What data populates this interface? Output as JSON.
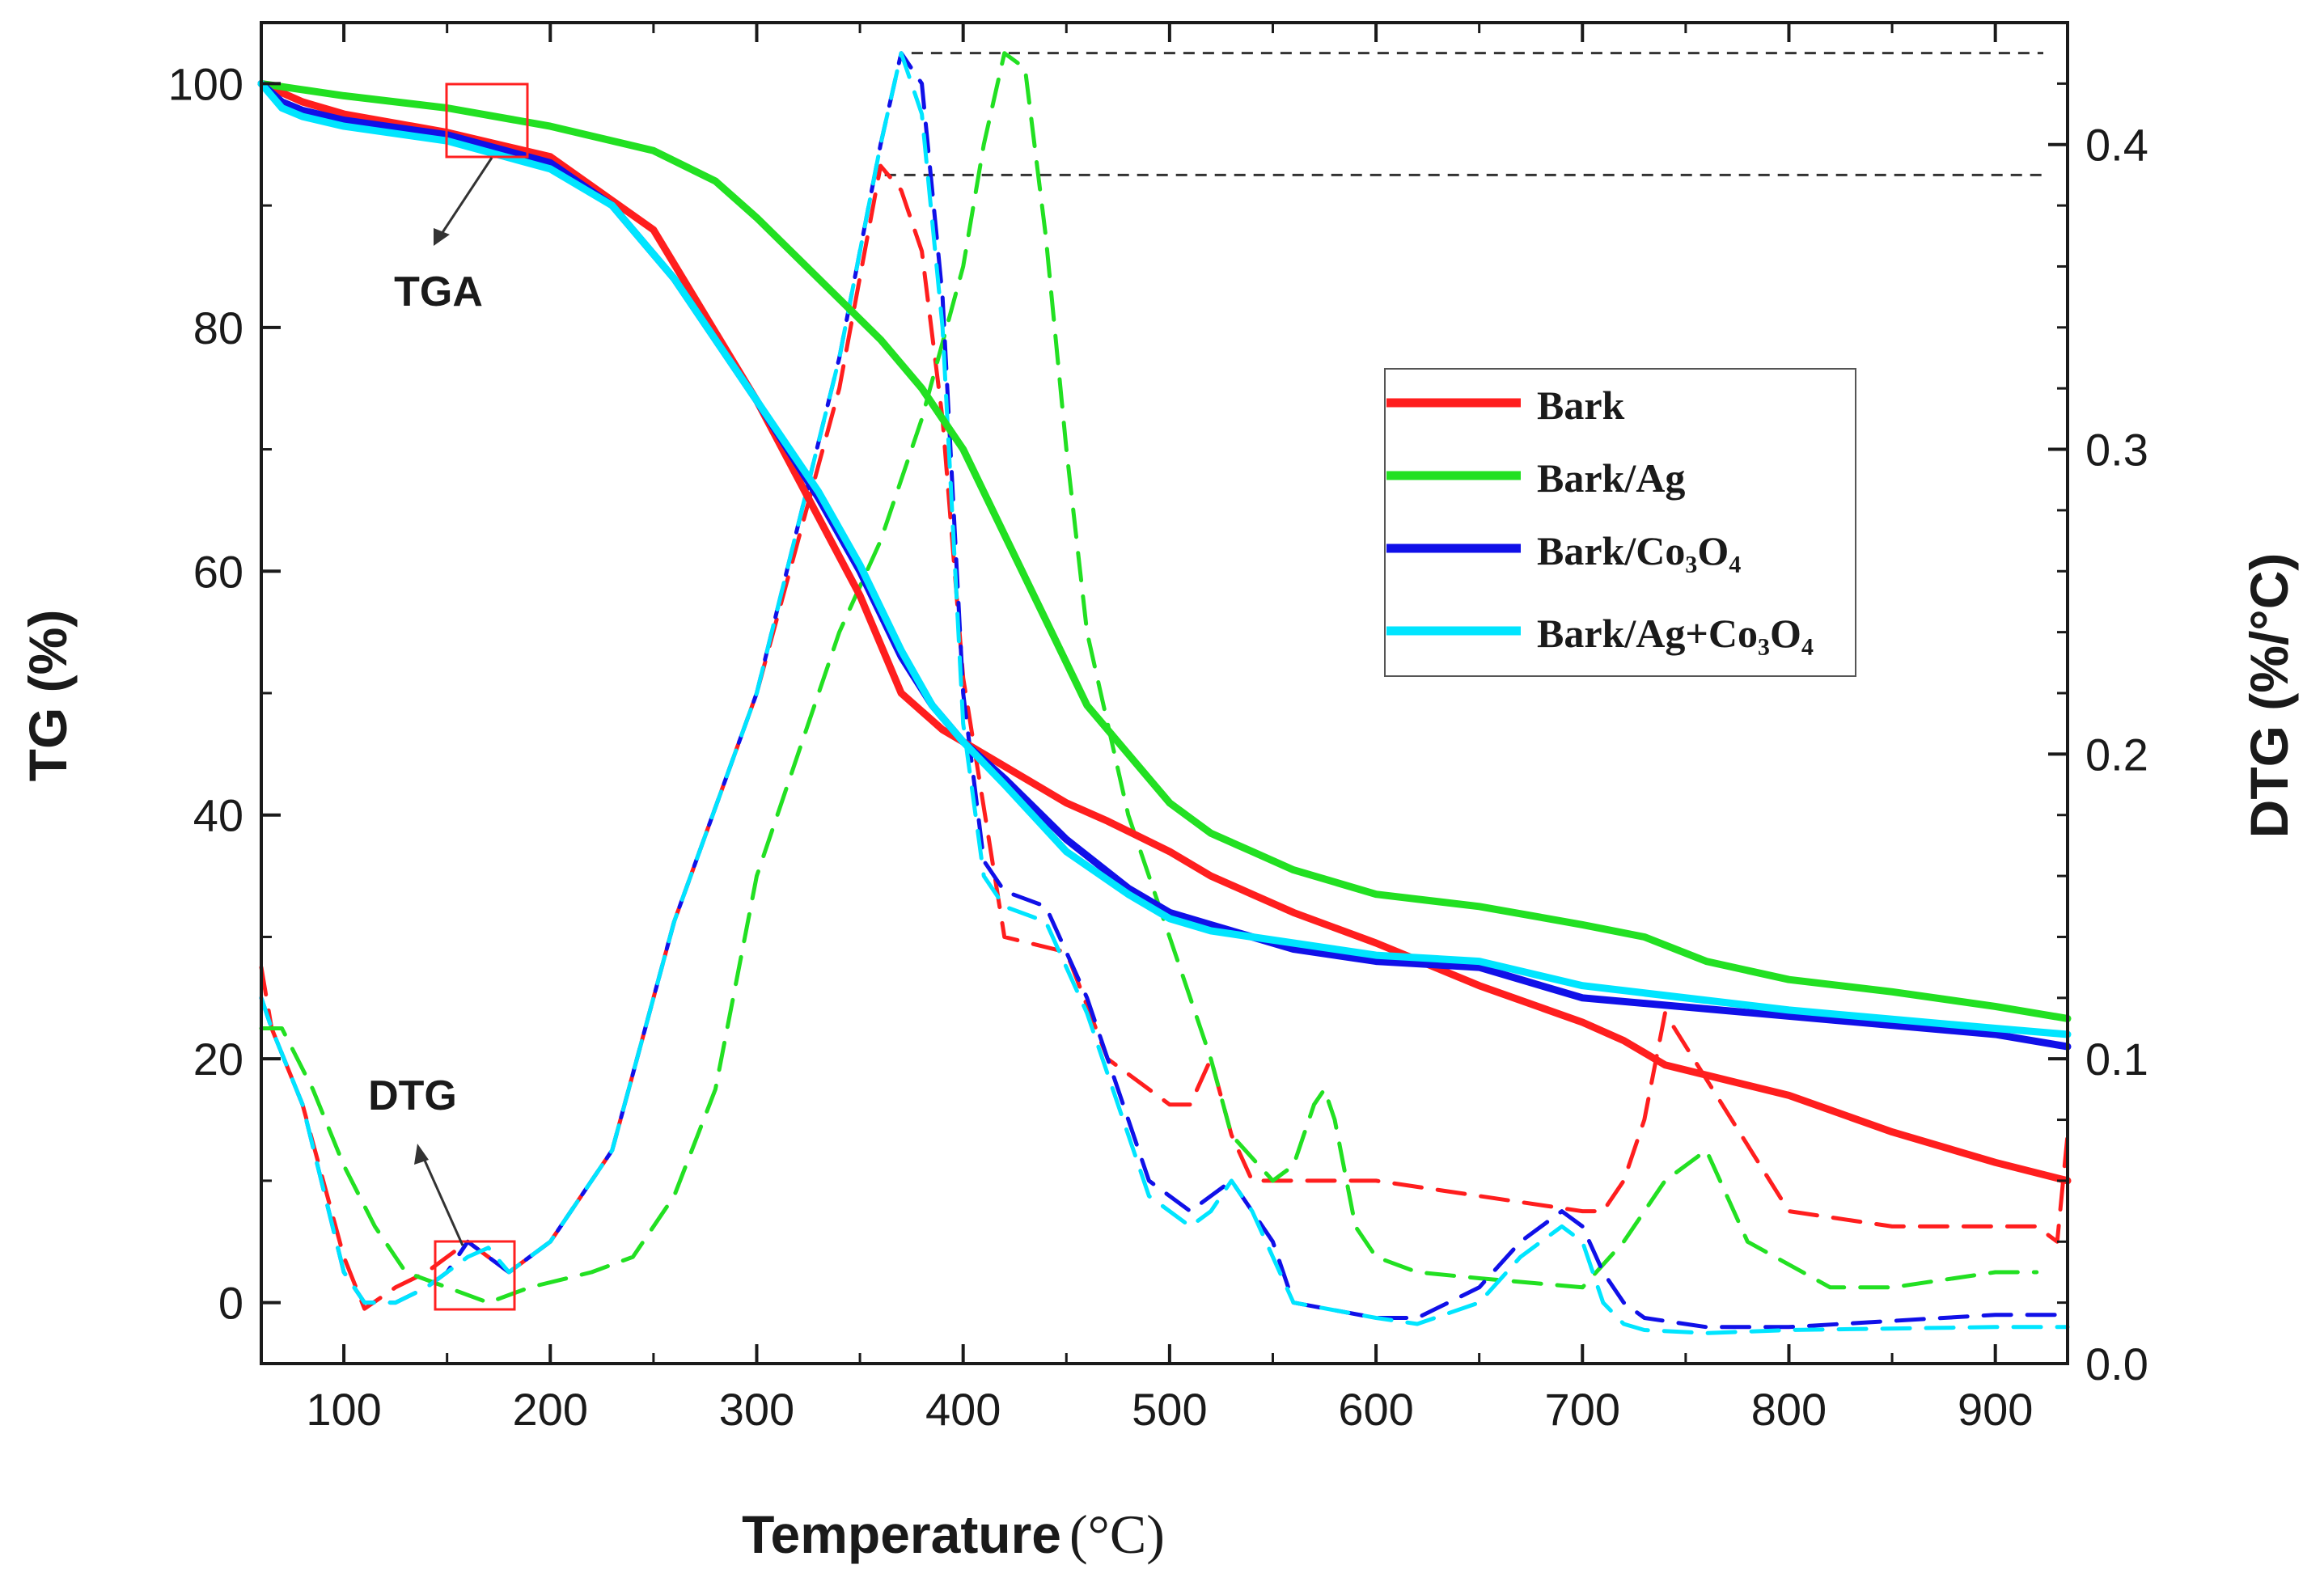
{
  "chart_data": {
    "type": "line",
    "xlabel": "Temperature",
    "xlabel_unit": "(°C)",
    "ylabel": "TG (%)",
    "y2label": "DTG (%/°C)",
    "xlim": [
      60,
      935
    ],
    "ylim": [
      -5,
      105
    ],
    "y2lim": [
      0,
      0.44
    ],
    "xticks": [
      100,
      200,
      300,
      400,
      500,
      600,
      700,
      800,
      900
    ],
    "yticks": [
      0,
      20,
      40,
      60,
      80,
      100
    ],
    "y2ticks": [
      0.0,
      0.1,
      0.2,
      0.3,
      0.4
    ],
    "legend_position": "right-center",
    "annotations": [
      {
        "text": "TGA",
        "x": 155,
        "y": 80
      },
      {
        "text": "DTG",
        "x": 150,
        "y": 15
      }
    ],
    "reference_lines_dtg": [
      0.43,
      0.39
    ],
    "series": [
      {
        "name": "Bark",
        "color": "#ff1e1e",
        "kind": "tg",
        "x": [
          60,
          80,
          100,
          150,
          200,
          250,
          300,
          350,
          370,
          390,
          400,
          420,
          450,
          470,
          500,
          520,
          540,
          560,
          600,
          650,
          700,
          720,
          740,
          800,
          850,
          900,
          935
        ],
        "y": [
          100,
          98.5,
          97.5,
          96,
          94,
          88,
          74,
          58,
          50,
          47,
          46,
          44,
          41,
          39.5,
          37,
          35,
          33.5,
          32,
          29.5,
          26,
          23,
          21.5,
          19.5,
          17,
          14,
          11.5,
          10
        ]
      },
      {
        "name": "Bark/Ag",
        "color": "#22e022",
        "kind": "tg",
        "x": [
          60,
          80,
          100,
          150,
          200,
          250,
          280,
          300,
          330,
          360,
          380,
          400,
          420,
          440,
          460,
          480,
          500,
          520,
          540,
          560,
          580,
          600,
          650,
          700,
          730,
          760,
          800,
          850,
          900,
          935
        ],
        "y": [
          100,
          99.5,
          99,
          98,
          96.5,
          94.5,
          92,
          89,
          84,
          79,
          75,
          70,
          63,
          56,
          49,
          45,
          41,
          38.5,
          37,
          35.5,
          34.5,
          33.5,
          32.5,
          31,
          30,
          28,
          26.5,
          25.5,
          24.3,
          23.3
        ]
      },
      {
        "name": "Bark/Co3O4",
        "color": "#1010e8",
        "kind": "tg",
        "x": [
          60,
          70,
          80,
          100,
          150,
          200,
          230,
          260,
          300,
          330,
          350,
          370,
          385,
          400,
          420,
          450,
          480,
          500,
          520,
          540,
          560,
          600,
          650,
          700,
          800,
          900,
          935
        ],
        "y": [
          100,
          98.5,
          97.8,
          97,
          95.8,
          93.5,
          90,
          84,
          74,
          66,
          60,
          53,
          49,
          46,
          43,
          38,
          34,
          32,
          31,
          30,
          29,
          28,
          27.5,
          25,
          23.5,
          22,
          21
        ]
      },
      {
        "name": "Bark/Ag+Co3O4",
        "color": "#00e5ff",
        "kind": "tg",
        "x": [
          60,
          70,
          80,
          100,
          150,
          200,
          230,
          260,
          300,
          330,
          350,
          370,
          385,
          400,
          420,
          450,
          480,
          500,
          520,
          540,
          560,
          600,
          650,
          700,
          800,
          900,
          935
        ],
        "y": [
          100,
          98,
          97.3,
          96.5,
          95.3,
          93,
          90,
          84,
          74,
          66.5,
          60.5,
          53.5,
          49,
          46,
          42.5,
          37,
          33.5,
          31.5,
          30.5,
          30,
          29.5,
          28.5,
          28,
          26,
          24,
          22.5,
          22
        ]
      },
      {
        "name": "Bark",
        "color": "#ff1e1e",
        "kind": "dtg",
        "x": [
          60,
          65,
          80,
          100,
          110,
          125,
          140,
          150,
          160,
          170,
          180,
          200,
          230,
          260,
          300,
          340,
          360,
          370,
          380,
          390,
          400,
          420,
          450,
          470,
          500,
          510,
          520,
          530,
          540,
          560,
          600,
          650,
          700,
          710,
          720,
          730,
          740,
          800,
          850,
          920,
          930,
          935
        ],
        "y": [
          0.13,
          0.11,
          0.085,
          0.035,
          0.018,
          0.025,
          0.03,
          0.035,
          0.04,
          0.035,
          0.03,
          0.04,
          0.07,
          0.145,
          0.22,
          0.32,
          0.393,
          0.385,
          0.365,
          0.31,
          0.225,
          0.14,
          0.135,
          0.1,
          0.085,
          0.085,
          0.1,
          0.075,
          0.06,
          0.06,
          0.06,
          0.055,
          0.05,
          0.05,
          0.06,
          0.08,
          0.115,
          0.05,
          0.045,
          0.045,
          0.04,
          0.075
        ]
      },
      {
        "name": "Bark/Ag",
        "color": "#22e022",
        "kind": "dtg",
        "x": [
          60,
          70,
          85,
          100,
          115,
          130,
          150,
          170,
          190,
          220,
          240,
          260,
          280,
          300,
          320,
          340,
          360,
          380,
          400,
          410,
          420,
          430,
          440,
          450,
          460,
          480,
          500,
          520,
          530,
          550,
          560,
          570,
          575,
          580,
          590,
          600,
          620,
          650,
          700,
          720,
          740,
          760,
          780,
          820,
          850,
          900,
          920
        ],
        "y": [
          0.11,
          0.11,
          0.09,
          0.065,
          0.045,
          0.03,
          0.025,
          0.02,
          0.025,
          0.03,
          0.035,
          0.055,
          0.09,
          0.16,
          0.2,
          0.24,
          0.27,
          0.31,
          0.36,
          0.4,
          0.43,
          0.425,
          0.37,
          0.3,
          0.24,
          0.18,
          0.14,
          0.1,
          0.075,
          0.06,
          0.065,
          0.085,
          0.09,
          0.08,
          0.045,
          0.035,
          0.03,
          0.028,
          0.025,
          0.04,
          0.06,
          0.07,
          0.04,
          0.025,
          0.025,
          0.03,
          0.03
        ]
      },
      {
        "name": "Bark/Co3O4",
        "color": "#1010e8",
        "kind": "dtg",
        "x": [
          60,
          65,
          80,
          100,
          110,
          125,
          140,
          150,
          160,
          170,
          180,
          200,
          230,
          260,
          300,
          340,
          360,
          370,
          380,
          390,
          400,
          410,
          420,
          440,
          460,
          490,
          510,
          520,
          530,
          540,
          550,
          560,
          600,
          620,
          650,
          670,
          690,
          700,
          710,
          720,
          730,
          760,
          800,
          900,
          935
        ],
        "y": [
          0.12,
          0.11,
          0.085,
          0.03,
          0.02,
          0.02,
          0.025,
          0.03,
          0.04,
          0.035,
          0.03,
          0.04,
          0.07,
          0.145,
          0.22,
          0.33,
          0.4,
          0.43,
          0.42,
          0.35,
          0.22,
          0.165,
          0.155,
          0.15,
          0.12,
          0.06,
          0.05,
          0.055,
          0.06,
          0.05,
          0.04,
          0.02,
          0.015,
          0.015,
          0.025,
          0.04,
          0.05,
          0.045,
          0.03,
          0.02,
          0.015,
          0.012,
          0.012,
          0.016,
          0.016
        ]
      },
      {
        "name": "Bark/Ag+Co3O4",
        "color": "#00e5ff",
        "kind": "dtg",
        "x": [
          60,
          65,
          80,
          100,
          110,
          125,
          140,
          150,
          160,
          170,
          180,
          200,
          230,
          260,
          300,
          340,
          360,
          370,
          380,
          390,
          400,
          410,
          420,
          440,
          460,
          490,
          510,
          520,
          530,
          540,
          550,
          560,
          600,
          620,
          650,
          670,
          690,
          700,
          710,
          720,
          730,
          760,
          800,
          900,
          935
        ],
        "y": [
          0.12,
          0.11,
          0.085,
          0.03,
          0.02,
          0.02,
          0.025,
          0.03,
          0.035,
          0.038,
          0.03,
          0.04,
          0.07,
          0.145,
          0.22,
          0.33,
          0.4,
          0.43,
          0.41,
          0.34,
          0.21,
          0.16,
          0.15,
          0.145,
          0.115,
          0.055,
          0.045,
          0.05,
          0.06,
          0.05,
          0.035,
          0.02,
          0.015,
          0.013,
          0.02,
          0.035,
          0.045,
          0.04,
          0.02,
          0.013,
          0.011,
          0.01,
          0.011,
          0.012,
          0.012
        ]
      }
    ]
  },
  "legend": {
    "items": [
      {
        "label": "Bark",
        "color": "#ff1e1e"
      },
      {
        "label": "Bark/Ag",
        "color": "#22e022"
      },
      {
        "label": "Bark/Co₃O₄",
        "color": "#1010e8"
      },
      {
        "label": "Bark/Ag+Co₃O₄",
        "color": "#00e5ff"
      }
    ]
  },
  "frame_color": "#1a1a1a",
  "annotation_box_color": "#ff2020"
}
